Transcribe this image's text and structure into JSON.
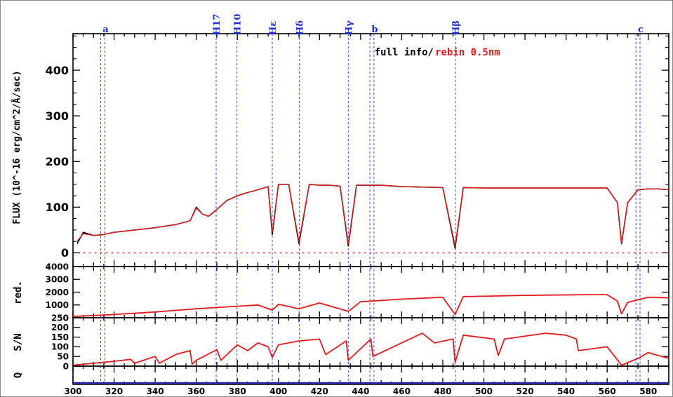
{
  "colors": {
    "observed": "#000000",
    "rebinned": "#e01a1a",
    "marker_lines": "#3a3ae8",
    "zero_line": "#e01a1a",
    "q_trace": "#2a2ab0"
  },
  "legend": {
    "part1": "full info",
    "sep": "/",
    "part2": "rebin  0.5nm",
    "position": "top-center"
  },
  "chart_data": [
    {
      "panel": "flux",
      "type": "line",
      "ylabel": "FLUX (10^-16 erg/cm^2/Å/sec)",
      "xlim": [
        300,
        590
      ],
      "ylim": [
        -30,
        480
      ],
      "yticks": [
        0,
        100,
        200,
        300,
        400
      ],
      "marker_lines": [
        {
          "label": "a",
          "x": [
            313.5,
            315.5
          ]
        },
        {
          "label": "H17",
          "x": [
            369.7
          ]
        },
        {
          "label": "H10",
          "x": [
            379.8
          ]
        },
        {
          "label": "Hε",
          "x": [
            397.0
          ]
        },
        {
          "label": "Hδ",
          "x": [
            410.2
          ]
        },
        {
          "label": "Hγ",
          "x": [
            434.0
          ]
        },
        {
          "label": "b",
          "x": [
            444.5,
            446.5
          ]
        },
        {
          "label": "Hβ",
          "x": [
            486.1
          ]
        },
        {
          "label": "c",
          "x": [
            574.0,
            576.0
          ]
        }
      ],
      "series": [
        {
          "name": "full info",
          "x": [
            302,
            305,
            310,
            315,
            320,
            330,
            340,
            350,
            357,
            360,
            363,
            366,
            370,
            375,
            380,
            385,
            390,
            395,
            397,
            400,
            405,
            410,
            415,
            420,
            425,
            430,
            434,
            438,
            445,
            450,
            460,
            470,
            480,
            486,
            490,
            500,
            510,
            520,
            530,
            540,
            550,
            560,
            565,
            567,
            570,
            575,
            580,
            585,
            590
          ],
          "y": [
            20,
            45,
            38,
            40,
            45,
            50,
            55,
            62,
            70,
            100,
            85,
            80,
            95,
            115,
            125,
            132,
            138,
            145,
            40,
            150,
            150,
            20,
            150,
            148,
            148,
            146,
            15,
            148,
            148,
            148,
            145,
            144,
            143,
            10,
            143,
            142,
            142,
            142,
            142,
            142,
            142,
            142,
            110,
            20,
            110,
            138,
            140,
            140,
            138
          ]
        },
        {
          "name": "rebin 0.5nm",
          "x": [
            302,
            305,
            310,
            315,
            320,
            330,
            340,
            350,
            357,
            360,
            363,
            366,
            370,
            375,
            380,
            385,
            390,
            395,
            397,
            400,
            405,
            410,
            415,
            420,
            425,
            430,
            434,
            438,
            445,
            450,
            460,
            470,
            480,
            486,
            490,
            500,
            510,
            520,
            530,
            540,
            550,
            560,
            565,
            567,
            570,
            575,
            580,
            585,
            590
          ],
          "y": [
            25,
            42,
            38,
            40,
            45,
            50,
            55,
            62,
            70,
            98,
            85,
            80,
            95,
            115,
            125,
            132,
            138,
            145,
            45,
            150,
            150,
            25,
            150,
            148,
            148,
            146,
            20,
            148,
            148,
            148,
            145,
            144,
            143,
            15,
            143,
            142,
            142,
            142,
            142,
            142,
            142,
            142,
            110,
            22,
            110,
            138,
            140,
            140,
            138
          ]
        }
      ]
    },
    {
      "panel": "red",
      "type": "line",
      "ylabel": "red.",
      "xlim": [
        300,
        590
      ],
      "ylim": [
        0,
        4000
      ],
      "yticks": [
        0,
        1000,
        2000,
        3000,
        4000
      ],
      "series": [
        {
          "name": "red.",
          "x": [
            300,
            320,
            340,
            360,
            370,
            380,
            390,
            397,
            400,
            410,
            420,
            434,
            440,
            460,
            480,
            486,
            490,
            520,
            550,
            560,
            565,
            567,
            570,
            580,
            590
          ],
          "y": [
            100,
            250,
            450,
            700,
            800,
            900,
            1000,
            600,
            1050,
            700,
            1150,
            500,
            1250,
            1450,
            1600,
            250,
            1650,
            1750,
            1800,
            1800,
            1300,
            300,
            1200,
            1600,
            1550
          ]
        }
      ]
    },
    {
      "panel": "sn",
      "type": "line",
      "ylabel": "S/N",
      "xlim": [
        300,
        590
      ],
      "ylim": [
        0,
        250
      ],
      "yticks": [
        0,
        50,
        100,
        150,
        200,
        250
      ],
      "series": [
        {
          "name": "S/N",
          "x": [
            300,
            310,
            320,
            328,
            330,
            340,
            342,
            350,
            357,
            358,
            360,
            370,
            372,
            380,
            385,
            390,
            395,
            397,
            400,
            410,
            420,
            423,
            433,
            434,
            445,
            446,
            470,
            476,
            485,
            486,
            490,
            505,
            507,
            510,
            530,
            540,
            545,
            546,
            560,
            567,
            575,
            580,
            590
          ],
          "y": [
            5,
            15,
            25,
            35,
            15,
            50,
            15,
            60,
            80,
            10,
            30,
            85,
            30,
            110,
            80,
            120,
            100,
            45,
            110,
            130,
            140,
            60,
            130,
            30,
            140,
            50,
            170,
            120,
            140,
            20,
            160,
            140,
            55,
            140,
            170,
            160,
            140,
            80,
            100,
            5,
            40,
            70,
            40
          ]
        }
      ]
    },
    {
      "panel": "q",
      "type": "line",
      "ylabel": "Q",
      "xlim": [
        300,
        590
      ],
      "xticks": [
        300,
        320,
        340,
        360,
        380,
        400,
        420,
        440,
        460,
        480,
        500,
        520,
        540,
        560,
        580
      ],
      "series": [
        {
          "name": "Q",
          "x": [
            300,
            590
          ],
          "y": [
            0,
            0
          ]
        }
      ]
    }
  ]
}
